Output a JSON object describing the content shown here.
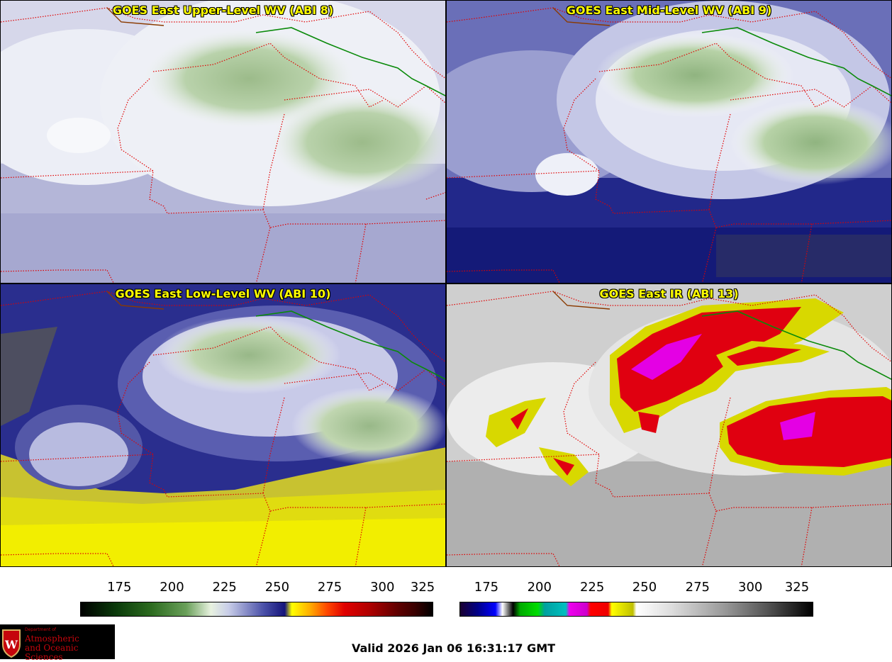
{
  "panels": [
    {
      "title": "GOES East Upper-Level WV (ABI 8)"
    },
    {
      "title": "GOES East Mid-Level WV (ABI 9)"
    },
    {
      "title": "GOES East Low-Level WV (ABI 10)"
    },
    {
      "title": "GOES East IR (ABI 13)"
    }
  ],
  "colorbars": [
    {
      "ticks": [
        "175",
        "200",
        "225",
        "250",
        "275",
        "300",
        "325"
      ]
    },
    {
      "ticks": [
        "175",
        "200",
        "225",
        "250",
        "275",
        "300",
        "325"
      ]
    }
  ],
  "logo": {
    "line1": "Department of",
    "line2": "Atmospheric",
    "line3": "and Oceanic Sciences"
  },
  "valid_time": "Valid 2026 Jan 06 16:31:17 GMT"
}
